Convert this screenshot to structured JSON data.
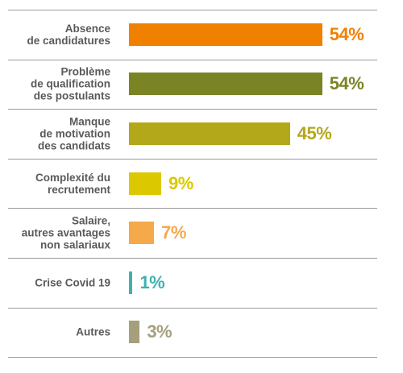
{
  "chart_data": {
    "type": "bar",
    "orientation": "horizontal",
    "categories": [
      "Absence\nde candidatures",
      "Problème\nde qualification\ndes postulants",
      "Manque\nde motivation\ndes candidats",
      "Complexité du\nrecrutement",
      "Salaire,\nautres avantages\nnon salariaux",
      "Crise Covid 19",
      "Autres"
    ],
    "values": [
      54,
      54,
      45,
      9,
      7,
      1,
      3
    ],
    "value_labels": [
      "54%",
      "54%",
      "45%",
      "9%",
      "7%",
      "1%",
      "3%"
    ],
    "colors": [
      "#f08000",
      "#7a8424",
      "#b3a81a",
      "#dcc800",
      "#f5a94a",
      "#3fb1b1",
      "#a59f7c"
    ]
  }
}
